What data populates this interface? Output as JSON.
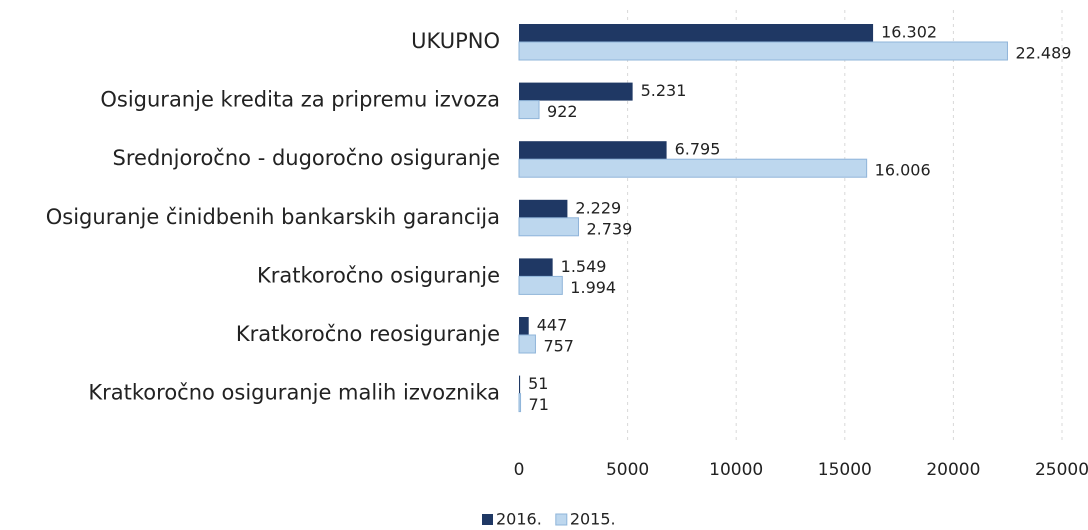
{
  "chart_data": {
    "type": "bar",
    "orientation": "horizontal",
    "categories": [
      "UKUPNO",
      "Osiguranje kredita za pripremu izvoza",
      "Srednjoročno - dugoročno osiguranje",
      "Osiguranje činidbenih bankarskih garancija",
      "Kratkoročno osiguranje",
      "Kratkoročno reosiguranje",
      "Kratkoročno osiguranje malih izvoznika"
    ],
    "series": [
      {
        "name": "2016.",
        "color": "#1f3864",
        "values": [
          16302,
          5231,
          6795,
          2229,
          1549,
          447,
          51
        ],
        "value_labels": [
          "16.302",
          "5.231",
          "6.795",
          "2.229",
          "1.549",
          "447",
          "51"
        ]
      },
      {
        "name": "2015.",
        "color": "#bdd7ee",
        "values": [
          22489,
          922,
          16006,
          2739,
          1994,
          757,
          71
        ],
        "value_labels": [
          "22.489",
          "922",
          "16.006",
          "2.739",
          "1.994",
          "757",
          "71"
        ]
      }
    ],
    "xlim": [
      0,
      25000
    ],
    "xticks": [
      0,
      5000,
      10000,
      15000,
      20000,
      25000
    ],
    "grid": true,
    "legend": "bottom"
  }
}
